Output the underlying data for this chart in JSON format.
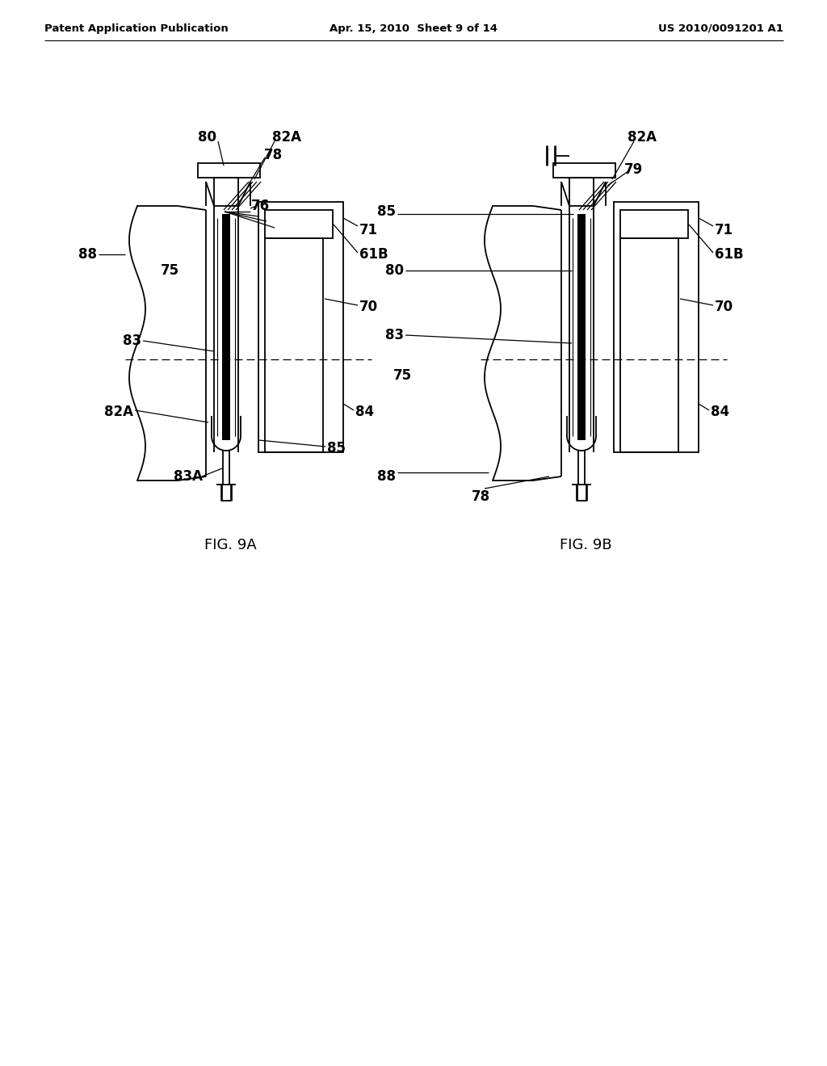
{
  "header_left": "Patent Application Publication",
  "header_center": "Apr. 15, 2010  Sheet 9 of 14",
  "header_right": "US 2010/0091201 A1",
  "fig_label_a": "FIG. 9A",
  "fig_label_b": "FIG. 9B",
  "bg_color": "#ffffff",
  "line_color": "#000000"
}
